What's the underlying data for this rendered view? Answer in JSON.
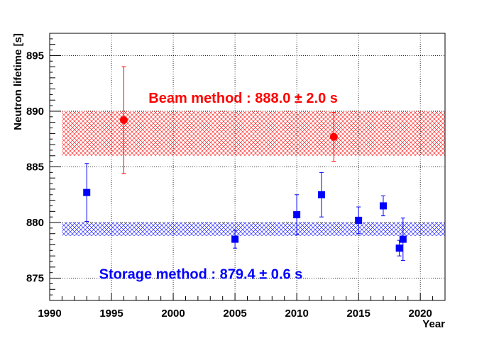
{
  "chart_data": {
    "type": "scatter",
    "title": "",
    "xlabel": "Year",
    "ylabel": "Neutron lifetime [s]",
    "xlim": [
      1990,
      2022
    ],
    "ylim": [
      873,
      897
    ],
    "x_ticks": [
      1990,
      1995,
      2000,
      2005,
      2010,
      2015,
      2020
    ],
    "y_ticks": [
      875,
      880,
      885,
      890,
      895
    ],
    "grid": true,
    "legend": "none",
    "series": [
      {
        "name": "Beam method",
        "marker": "circle",
        "color": "#ff0000",
        "points": [
          {
            "x": 1996,
            "y": 889.2,
            "err_up": 4.8,
            "err_down": 4.8
          },
          {
            "x": 2013,
            "y": 887.7,
            "err_up": 2.2,
            "err_down": 2.2
          }
        ]
      },
      {
        "name": "Storage method",
        "marker": "square",
        "color": "#0000ff",
        "points": [
          {
            "x": 1993,
            "y": 882.7,
            "err_up": 2.6,
            "err_down": 2.6
          },
          {
            "x": 2005,
            "y": 878.5,
            "err_up": 0.8,
            "err_down": 0.8
          },
          {
            "x": 2010,
            "y": 880.7,
            "err_up": 1.8,
            "err_down": 1.8
          },
          {
            "x": 2012,
            "y": 882.5,
            "err_up": 2.0,
            "err_down": 2.0
          },
          {
            "x": 2015,
            "y": 880.2,
            "err_up": 1.2,
            "err_down": 1.2
          },
          {
            "x": 2017,
            "y": 881.5,
            "err_up": 0.9,
            "err_down": 0.9
          },
          {
            "x": 2018.3,
            "y": 877.7,
            "err_up": 0.7,
            "err_down": 0.7
          },
          {
            "x": 2018.6,
            "y": 878.5,
            "err_up": 1.9,
            "err_down": 1.9
          }
        ]
      }
    ],
    "bands": [
      {
        "name": "Beam method average",
        "x_from": 1991,
        "x_to": 2022,
        "y_low": 886.0,
        "y_high": 890.0,
        "color": "#ff0000"
      },
      {
        "name": "Storage method average",
        "x_from": 1991,
        "x_to": 2022,
        "y_low": 878.8,
        "y_high": 880.0,
        "color": "#0000ff"
      }
    ],
    "annotations": [
      {
        "text": "Beam method : 888.0 ± 2.0 s",
        "color": "#ff0000",
        "x": 1998,
        "y": 891.2
      },
      {
        "text": "Storage method : 879.4 ± 0.6 s",
        "color": "#0000ff",
        "x": 1994,
        "y": 875.4
      }
    ]
  }
}
